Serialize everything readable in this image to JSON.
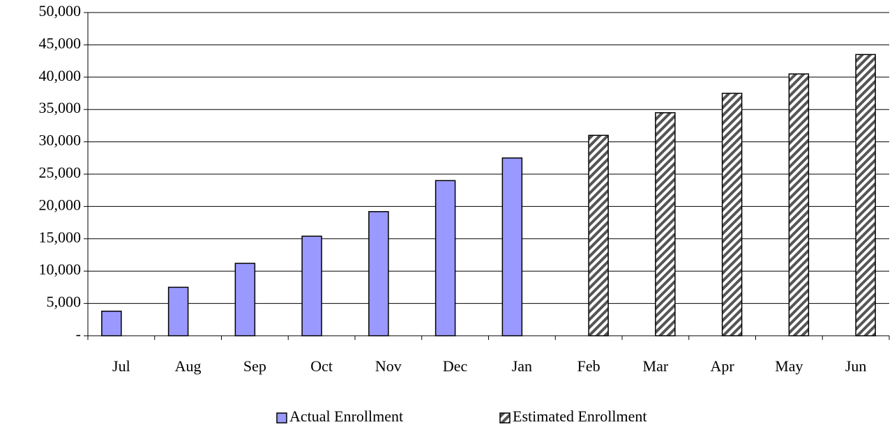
{
  "chart_data": {
    "type": "bar",
    "categories": [
      "Jul",
      "Aug",
      "Sep",
      "Oct",
      "Nov",
      "Dec",
      "Jan",
      "Feb",
      "Mar",
      "Apr",
      "May",
      "Jun"
    ],
    "series": [
      {
        "name": "Actual Enrollment",
        "color": "#9999ff",
        "values": [
          3800,
          7500,
          11200,
          15400,
          19200,
          24000,
          27500,
          null,
          null,
          null,
          null,
          null
        ]
      },
      {
        "name": "Estimated Enrollment",
        "color": "#000000",
        "pattern": "hatch",
        "values": [
          null,
          null,
          null,
          null,
          null,
          null,
          null,
          31000,
          34500,
          37500,
          40500,
          43500
        ]
      }
    ],
    "ylim": [
      0,
      50000
    ],
    "yticks": [
      {
        "value": 0,
        "label": "-"
      },
      {
        "value": 5000,
        "label": "5,000"
      },
      {
        "value": 10000,
        "label": "10,000"
      },
      {
        "value": 15000,
        "label": "15,000"
      },
      {
        "value": 20000,
        "label": "20,000"
      },
      {
        "value": 25000,
        "label": "25,000"
      },
      {
        "value": 30000,
        "label": "30,000"
      },
      {
        "value": 35000,
        "label": "35,000"
      },
      {
        "value": 40000,
        "label": "40,000"
      },
      {
        "value": 45000,
        "label": "45,000"
      },
      {
        "value": 50000,
        "label": "50,000"
      }
    ],
    "grid": true,
    "legend": "bottom"
  }
}
